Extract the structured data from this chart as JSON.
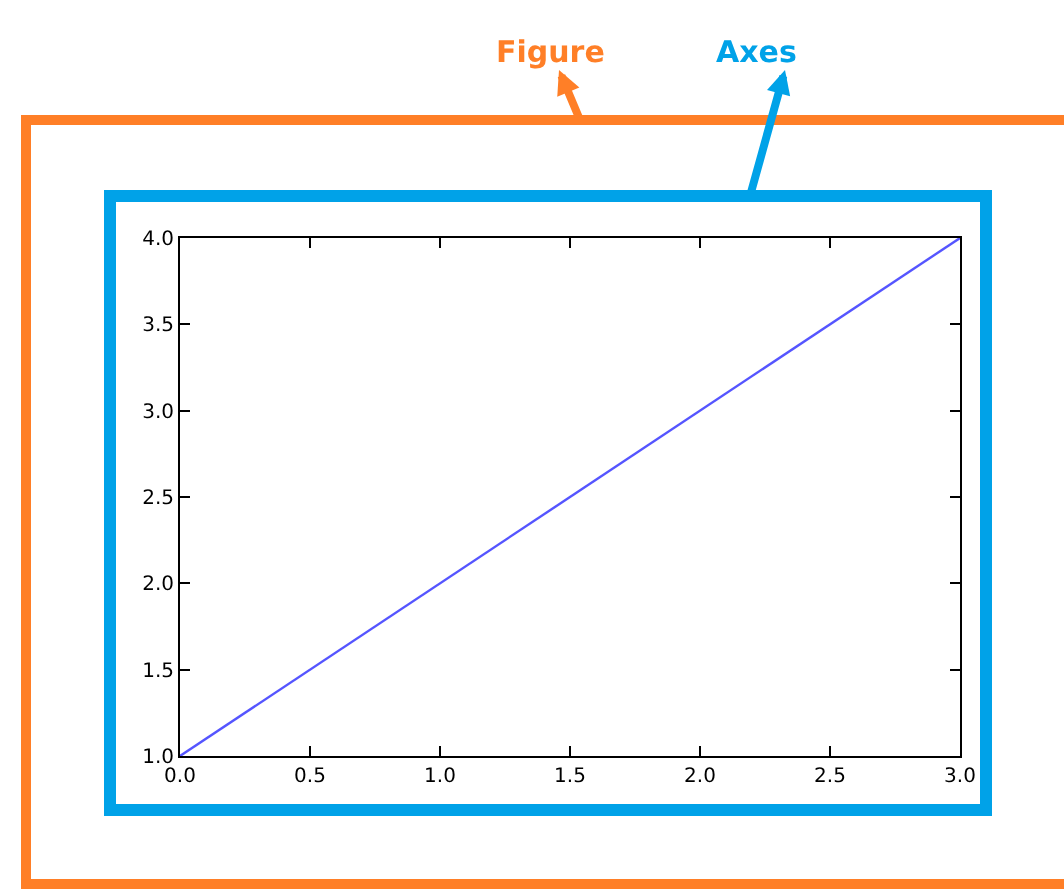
{
  "chart_data": {
    "type": "line",
    "x": [
      0,
      3
    ],
    "values": [
      1,
      4
    ],
    "color": "#5555ff",
    "xlim": [
      0,
      3
    ],
    "ylim": [
      1,
      4
    ],
    "xticks": [
      {
        "value": 0,
        "label": "0.0"
      },
      {
        "value": 0.5,
        "label": "0.5"
      },
      {
        "value": 1,
        "label": "1.0"
      },
      {
        "value": 1.5,
        "label": "1.5"
      },
      {
        "value": 2,
        "label": "2.0"
      },
      {
        "value": 2.5,
        "label": "2.5"
      },
      {
        "value": 3,
        "label": "3.0"
      }
    ],
    "yticks": [
      {
        "value": 1,
        "label": "1.0"
      },
      {
        "value": 1.5,
        "label": "1.5"
      },
      {
        "value": 2,
        "label": "2.0"
      },
      {
        "value": 2.5,
        "label": "2.5"
      },
      {
        "value": 3,
        "label": "3.0"
      },
      {
        "value": 3.5,
        "label": "3.5"
      },
      {
        "value": 4,
        "label": "4.0"
      }
    ],
    "marker": "none",
    "line_style": "solid",
    "annotations": [
      "Figure",
      "Axes"
    ]
  }
}
